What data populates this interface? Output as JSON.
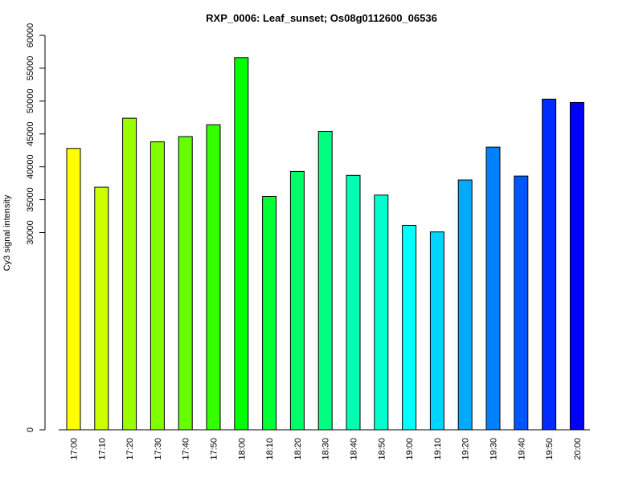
{
  "chart_data": {
    "type": "bar",
    "title": "RXP_0006: Leaf_sunset; Os08g0112600_06536",
    "xlabel": "",
    "ylabel": "Cy3 signal intensity",
    "ylim": [
      0,
      60000
    ],
    "y_ticks": [
      {
        "value": 0,
        "label": "0"
      },
      {
        "value": 30000,
        "label": "30000"
      },
      {
        "value": 35000,
        "label": "35000"
      },
      {
        "value": 40000,
        "label": "40000"
      },
      {
        "value": 45000,
        "label": "45000"
      },
      {
        "value": 50000,
        "label": "50000"
      },
      {
        "value": 55000,
        "label": "55000"
      },
      {
        "value": 60000,
        "label": "60000"
      }
    ],
    "categories": [
      "17:00",
      "17:10",
      "17:20",
      "17:30",
      "17:40",
      "17:50",
      "18:00",
      "18:10",
      "18:20",
      "18:30",
      "18:40",
      "18:50",
      "19:00",
      "19:10",
      "19:20",
      "19:30",
      "19:40",
      "19:50",
      "20:00"
    ],
    "values": [
      42800,
      36900,
      47400,
      43800,
      44600,
      46400,
      56600,
      35500,
      39300,
      45400,
      38700,
      35700,
      31100,
      30100,
      38000,
      43000,
      38600,
      50300,
      49800
    ],
    "colors": [
      "#ffff00",
      "#ccff00",
      "#99ff00",
      "#80ff00",
      "#66ff00",
      "#33ff00",
      "#00ff00",
      "#00ff33",
      "#00ff66",
      "#00ff80",
      "#00ffb3",
      "#00ffcc",
      "#00ffff",
      "#00d5ff",
      "#00aaff",
      "#0080ff",
      "#0055ff",
      "#002bff",
      "#0000ff"
    ],
    "grid": false,
    "legend": "none"
  }
}
